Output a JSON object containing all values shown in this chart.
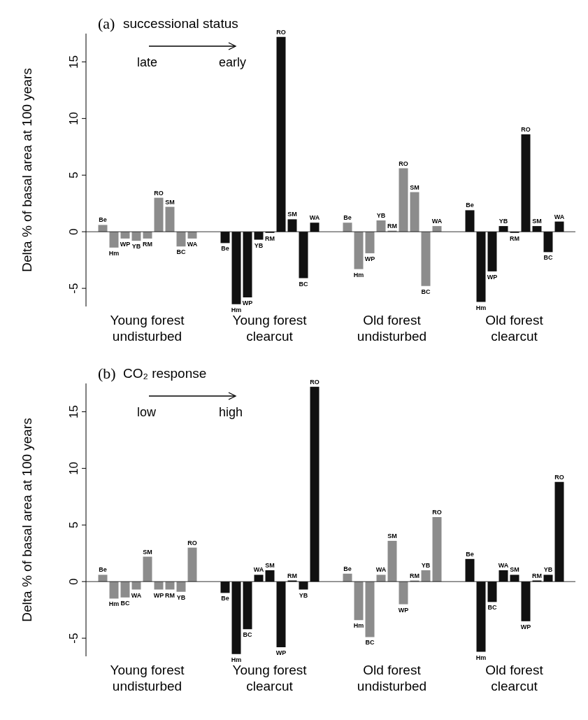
{
  "chart_data": [
    {
      "type": "bar",
      "ylabel": "Delta % of basal area at 100 years",
      "categories": [
        "Young forest undisturbed",
        "Young forest clearcut",
        "Old forest undisturbed",
        "Old forest clearcut"
      ],
      "ylim": [
        -6.6,
        17.5
      ],
      "yticks": [
        -5,
        0,
        5,
        10,
        15
      ],
      "ref_lines": [
        {
          "axis": "y",
          "value": 0,
          "color": "#000000"
        }
      ],
      "annotations": [
        "(a)",
        "successional status",
        "late",
        "early"
      ],
      "series": [
        {
          "name": "Be",
          "colors": [
            "#8c8c8c",
            "#111111",
            "#8c8c8c",
            "#111111"
          ],
          "values": [
            0.6,
            -1.0,
            0.8,
            1.9
          ]
        },
        {
          "name": "Hm",
          "colors": [
            "#8c8c8c",
            "#111111",
            "#8c8c8c",
            "#111111"
          ],
          "values": [
            -1.4,
            -6.4,
            -3.3,
            -6.2
          ]
        },
        {
          "name": "WP",
          "colors": [
            "#8c8c8c",
            "#111111",
            "#8c8c8c",
            "#111111"
          ],
          "values": [
            -0.6,
            -5.8,
            -1.9,
            -3.5
          ]
        },
        {
          "name": "YB",
          "colors": [
            "#8c8c8c",
            "#111111",
            "#8c8c8c",
            "#111111"
          ],
          "values": [
            -0.8,
            -0.7,
            1.0,
            0.5
          ]
        },
        {
          "name": "RM",
          "colors": [
            "#8c8c8c",
            "#111111",
            "#8c8c8c",
            "#111111"
          ],
          "values": [
            -0.6,
            -0.1,
            0.1,
            -0.1
          ]
        },
        {
          "name": "RO",
          "colors": [
            "#8c8c8c",
            "#111111",
            "#8c8c8c",
            "#111111"
          ],
          "values": [
            3.0,
            17.2,
            5.6,
            8.6
          ]
        },
        {
          "name": "SM",
          "colors": [
            "#8c8c8c",
            "#111111",
            "#8c8c8c",
            "#111111"
          ],
          "values": [
            2.2,
            1.1,
            3.5,
            0.5
          ]
        },
        {
          "name": "BC",
          "colors": [
            "#8c8c8c",
            "#111111",
            "#8c8c8c",
            "#111111"
          ],
          "values": [
            -1.3,
            -4.1,
            -4.8,
            -1.8
          ]
        },
        {
          "name": "WA",
          "colors": [
            "#8c8c8c",
            "#111111",
            "#8c8c8c",
            "#111111"
          ],
          "values": [
            -0.6,
            0.8,
            0.5,
            0.9
          ]
        }
      ]
    },
    {
      "type": "bar",
      "ylabel": "Delta % of basal area at 100 years",
      "categories": [
        "Young forest undisturbed",
        "Young forest clearcut",
        "Old forest undisturbed",
        "Old forest clearcut"
      ],
      "ylim": [
        -6.6,
        17.5
      ],
      "yticks": [
        -5,
        0,
        5,
        10,
        15
      ],
      "ref_lines": [
        {
          "axis": "y",
          "value": 0,
          "color": "#000000"
        }
      ],
      "annotations": [
        "(b)",
        "CO₂ response",
        "low",
        "high"
      ],
      "series": [
        {
          "name": "Be",
          "colors": [
            "#8c8c8c",
            "#111111",
            "#8c8c8c",
            "#111111"
          ],
          "values": [
            0.6,
            -1.0,
            0.7,
            2.0
          ]
        },
        {
          "name": "Hm",
          "colors": [
            "#8c8c8c",
            "#111111",
            "#8c8c8c",
            "#111111"
          ],
          "values": [
            -1.5,
            -6.4,
            -3.4,
            -6.2
          ]
        },
        {
          "name": "BC",
          "colors": [
            "#8c8c8c",
            "#111111",
            "#8c8c8c",
            "#111111"
          ],
          "values": [
            -1.4,
            -4.2,
            -4.9,
            -1.8
          ]
        },
        {
          "name": "WA",
          "colors": [
            "#8c8c8c",
            "#111111",
            "#8c8c8c",
            "#111111"
          ],
          "values": [
            -0.7,
            0.6,
            0.6,
            1.0
          ]
        },
        {
          "name": "SM",
          "colors": [
            "#8c8c8c",
            "#111111",
            "#8c8c8c",
            "#111111"
          ],
          "values": [
            2.2,
            1.0,
            3.6,
            0.6
          ]
        },
        {
          "name": "WP",
          "colors": [
            "#8c8c8c",
            "#111111",
            "#8c8c8c",
            "#111111"
          ],
          "values": [
            -0.7,
            -5.8,
            -2.0,
            -3.5
          ]
        },
        {
          "name": "RM",
          "colors": [
            "#8c8c8c",
            "#111111",
            "#8c8c8c",
            "#111111"
          ],
          "values": [
            -0.7,
            0.1,
            0.1,
            0.1
          ]
        },
        {
          "name": "YB",
          "colors": [
            "#8c8c8c",
            "#111111",
            "#8c8c8c",
            "#111111"
          ],
          "values": [
            -0.9,
            -0.7,
            1.0,
            0.6
          ]
        },
        {
          "name": "RO",
          "colors": [
            "#8c8c8c",
            "#111111",
            "#8c8c8c",
            "#111111"
          ],
          "values": [
            3.0,
            17.2,
            5.7,
            8.8
          ]
        }
      ]
    }
  ]
}
